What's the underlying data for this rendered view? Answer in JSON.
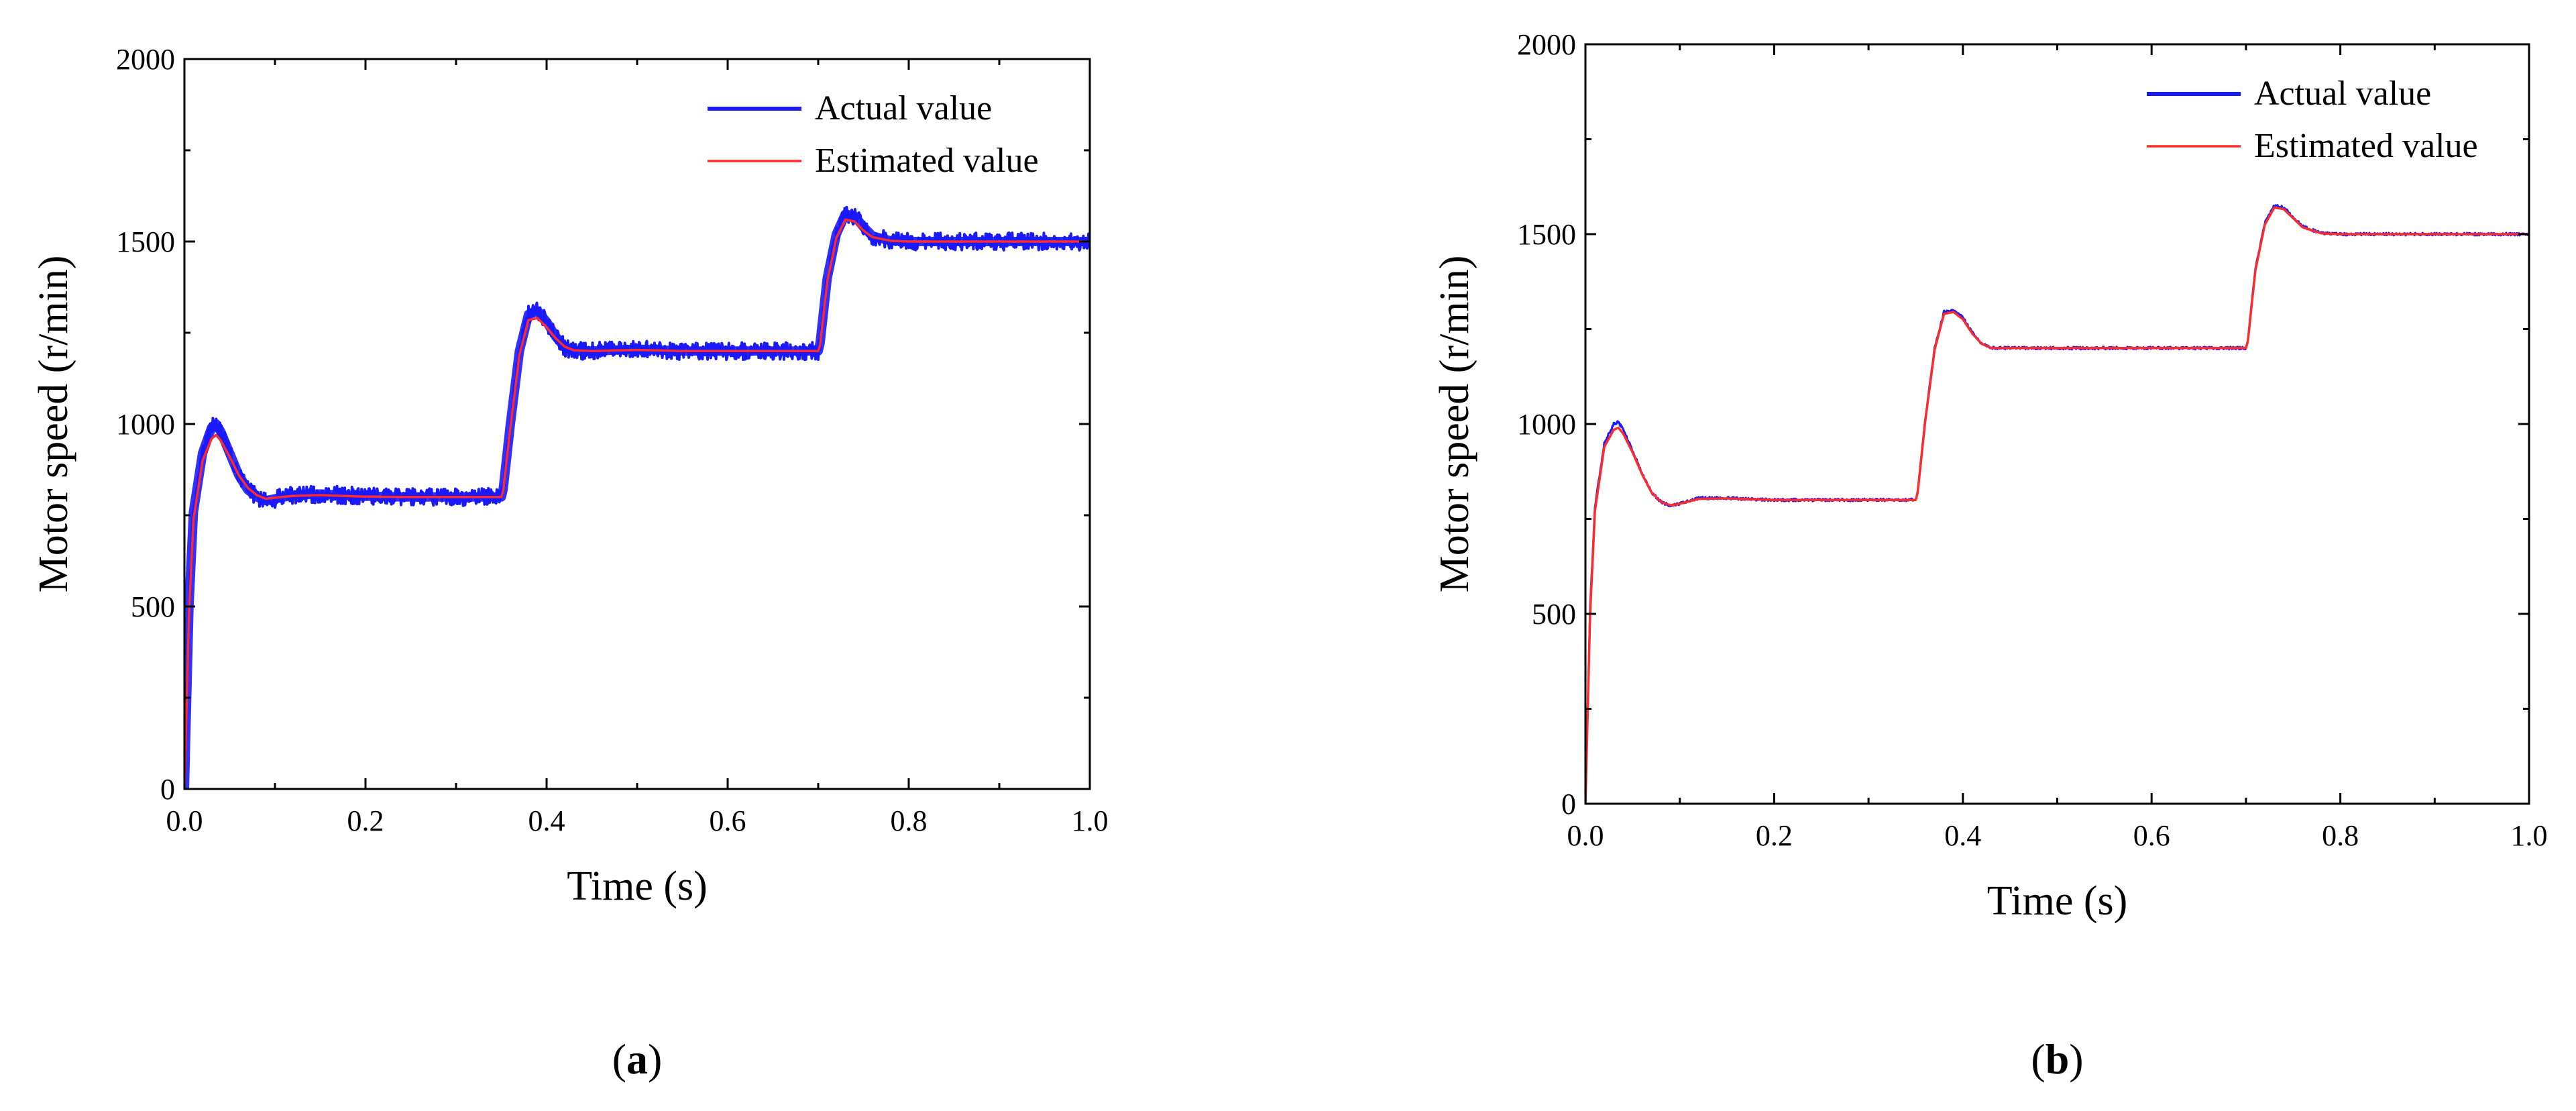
{
  "chart_data": [
    {
      "type": "line",
      "panel_label": "a",
      "xlabel": "Time (s)",
      "ylabel": "Motor speed (r/min)",
      "xlim": [
        0.0,
        1.0
      ],
      "ylim": [
        0,
        2000
      ],
      "x_ticks": [
        0.0,
        0.2,
        0.4,
        0.6,
        0.8,
        1.0
      ],
      "x_tick_labels": [
        "0.0",
        "0.2",
        "0.4",
        "0.6",
        "0.8",
        "1.0"
      ],
      "y_ticks": [
        0,
        500,
        1000,
        1500,
        2000
      ],
      "y_tick_labels": [
        "0",
        "500",
        "1000",
        "1500",
        "2000"
      ],
      "legend_position": "top-right",
      "series": [
        {
          "name": "Actual value",
          "color": "#1a1aff",
          "noise_band": 40,
          "x": [
            0,
            0.005,
            0.01,
            0.02,
            0.03,
            0.035,
            0.04,
            0.05,
            0.06,
            0.07,
            0.08,
            0.09,
            0.1,
            0.12,
            0.15,
            0.2,
            0.25,
            0.3,
            0.35,
            0.352,
            0.36,
            0.37,
            0.38,
            0.39,
            0.4,
            0.41,
            0.42,
            0.43,
            0.45,
            0.5,
            0.55,
            0.6,
            0.65,
            0.7,
            0.702,
            0.71,
            0.72,
            0.73,
            0.74,
            0.75,
            0.76,
            0.78,
            0.8,
            0.85,
            0.9,
            0.95,
            1.0
          ],
          "y": [
            0,
            500,
            760,
            920,
            990,
            1000,
            980,
            920,
            860,
            820,
            800,
            790,
            795,
            805,
            808,
            802,
            800,
            800,
            800,
            820,
            1000,
            1200,
            1300,
            1310,
            1280,
            1240,
            1210,
            1200,
            1200,
            1205,
            1200,
            1200,
            1200,
            1200,
            1220,
            1400,
            1520,
            1575,
            1570,
            1540,
            1515,
            1502,
            1500,
            1500,
            1500,
            1500,
            1500
          ]
        },
        {
          "name": "Estimated value",
          "color": "#ff2a2a",
          "x": [
            0,
            0.005,
            0.01,
            0.02,
            0.03,
            0.035,
            0.04,
            0.05,
            0.06,
            0.07,
            0.08,
            0.09,
            0.1,
            0.12,
            0.15,
            0.2,
            0.25,
            0.3,
            0.35,
            0.352,
            0.36,
            0.37,
            0.38,
            0.39,
            0.4,
            0.41,
            0.42,
            0.43,
            0.45,
            0.5,
            0.55,
            0.6,
            0.65,
            0.7,
            0.702,
            0.71,
            0.72,
            0.73,
            0.74,
            0.75,
            0.76,
            0.78,
            0.8,
            0.85,
            0.9,
            0.95,
            1.0
          ],
          "y": [
            0,
            480,
            740,
            900,
            960,
            970,
            955,
            910,
            860,
            825,
            805,
            795,
            798,
            803,
            805,
            801,
            800,
            800,
            800,
            815,
            990,
            1190,
            1285,
            1290,
            1265,
            1235,
            1212,
            1202,
            1200,
            1203,
            1200,
            1200,
            1200,
            1200,
            1215,
            1390,
            1510,
            1560,
            1555,
            1530,
            1512,
            1502,
            1500,
            1500,
            1500,
            1500,
            1500
          ]
        }
      ]
    },
    {
      "type": "line",
      "panel_label": "b",
      "xlabel": "Time (s)",
      "ylabel": "Motor speed (r/min)",
      "xlim": [
        0.0,
        1.0
      ],
      "ylim": [
        0,
        2000
      ],
      "x_ticks": [
        0.0,
        0.2,
        0.4,
        0.6,
        0.8,
        1.0
      ],
      "x_tick_labels": [
        "0.0",
        "0.2",
        "0.4",
        "0.6",
        "0.8",
        "1.0"
      ],
      "y_ticks": [
        0,
        500,
        1000,
        1500,
        2000
      ],
      "y_tick_labels": [
        "0",
        "500",
        "1000",
        "1500",
        "2000"
      ],
      "legend_position": "top-right",
      "series": [
        {
          "name": "Actual value",
          "color": "#1a1aff",
          "noise_band": 6,
          "x": [
            0,
            0.005,
            0.01,
            0.02,
            0.03,
            0.035,
            0.04,
            0.05,
            0.06,
            0.07,
            0.08,
            0.09,
            0.1,
            0.12,
            0.15,
            0.2,
            0.25,
            0.3,
            0.35,
            0.352,
            0.36,
            0.37,
            0.38,
            0.39,
            0.4,
            0.41,
            0.42,
            0.43,
            0.45,
            0.5,
            0.55,
            0.6,
            0.65,
            0.7,
            0.702,
            0.71,
            0.72,
            0.73,
            0.74,
            0.75,
            0.76,
            0.78,
            0.8,
            0.85,
            0.9,
            0.95,
            1.0
          ],
          "y": [
            0,
            520,
            780,
            950,
            1000,
            1005,
            985,
            930,
            870,
            820,
            795,
            785,
            790,
            805,
            805,
            800,
            800,
            800,
            800,
            820,
            1010,
            1200,
            1295,
            1300,
            1280,
            1240,
            1212,
            1200,
            1200,
            1200,
            1200,
            1200,
            1200,
            1200,
            1220,
            1410,
            1530,
            1575,
            1570,
            1545,
            1520,
            1503,
            1500,
            1500,
            1500,
            1500,
            1500
          ]
        },
        {
          "name": "Estimated value",
          "color": "#ff2a2a",
          "x": [
            0,
            0.005,
            0.01,
            0.02,
            0.03,
            0.035,
            0.04,
            0.05,
            0.06,
            0.07,
            0.08,
            0.09,
            0.1,
            0.12,
            0.15,
            0.2,
            0.25,
            0.3,
            0.35,
            0.352,
            0.36,
            0.37,
            0.38,
            0.39,
            0.4,
            0.41,
            0.42,
            0.43,
            0.45,
            0.5,
            0.55,
            0.6,
            0.65,
            0.7,
            0.702,
            0.71,
            0.72,
            0.73,
            0.74,
            0.75,
            0.76,
            0.78,
            0.8,
            0.85,
            0.9,
            0.95,
            1.0
          ],
          "y": [
            0,
            500,
            770,
            940,
            985,
            990,
            975,
            925,
            868,
            820,
            795,
            786,
            790,
            803,
            804,
            800,
            800,
            800,
            800,
            818,
            1005,
            1195,
            1290,
            1295,
            1276,
            1238,
            1211,
            1200,
            1200,
            1200,
            1200,
            1200,
            1200,
            1200,
            1218,
            1405,
            1525,
            1570,
            1566,
            1542,
            1518,
            1502,
            1500,
            1500,
            1500,
            1500,
            1500
          ]
        }
      ]
    }
  ]
}
